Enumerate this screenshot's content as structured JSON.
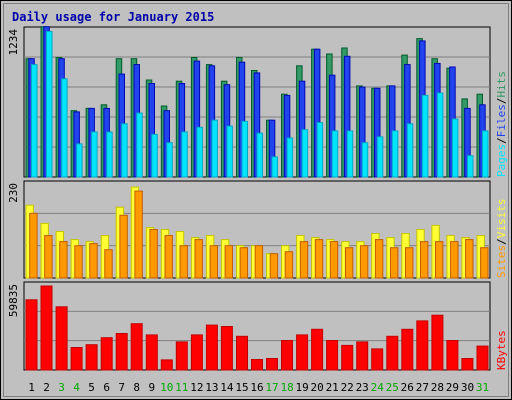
{
  "chart_data": {
    "type": "bar",
    "title": "Daily usage for January 2015",
    "categories": [
      "1",
      "2",
      "3",
      "4",
      "5",
      "6",
      "7",
      "8",
      "9",
      "10",
      "11",
      "12",
      "13",
      "14",
      "15",
      "16",
      "17",
      "18",
      "19",
      "20",
      "21",
      "22",
      "23",
      "24",
      "25",
      "26",
      "27",
      "28",
      "29",
      "30",
      "31"
    ],
    "weekend_days": [
      "3",
      "4",
      "10",
      "11",
      "17",
      "18",
      "24",
      "25",
      "31"
    ],
    "panels": [
      {
        "id": "hits",
        "y_max_label": "1234",
        "ylim": [
          0,
          1234
        ],
        "series": [
          {
            "name": "Hits",
            "color": "#339966",
            "values": [
              1000,
              1270,
              1010,
              560,
              580,
              610,
              1000,
              1000,
              820,
              600,
              810,
              1010,
              950,
              810,
              1010,
              900,
              480,
              700,
              940,
              1080,
              1040,
              1090,
              770,
              750,
              770,
              1030,
              1170,
              1000,
              920,
              660,
              700
            ]
          },
          {
            "name": "Files",
            "color": "#2244ee",
            "values": [
              1000,
              1270,
              1000,
              550,
              580,
              580,
              870,
              950,
              790,
              560,
              790,
              980,
              940,
              780,
              970,
              880,
              480,
              690,
              810,
              1080,
              860,
              1020,
              760,
              750,
              770,
              950,
              1150,
              960,
              930,
              580,
              610
            ]
          },
          {
            "name": "Pages",
            "color": "#00e5ff",
            "values": [
              950,
              1230,
              830,
              280,
              380,
              380,
              450,
              540,
              360,
              290,
              380,
              420,
              480,
              430,
              470,
              370,
              170,
              330,
              400,
              460,
              390,
              390,
              290,
              340,
              390,
              450,
              690,
              710,
              490,
              180,
              390
            ]
          }
        ]
      },
      {
        "id": "visits",
        "y_max_label": "230",
        "ylim": [
          0,
          230
        ],
        "series": [
          {
            "name": "Visits",
            "color": "#ffff33",
            "values": [
              180,
              135,
              115,
              95,
              90,
              105,
              175,
              225,
              125,
              120,
              115,
              100,
              105,
              95,
              80,
              80,
              60,
              80,
              105,
              100,
              95,
              90,
              90,
              110,
              100,
              110,
              120,
              130,
              105,
              100,
              105
            ]
          },
          {
            "name": "Sites",
            "color": "#ff9900",
            "values": [
              160,
              105,
              90,
              80,
              85,
              70,
              155,
              215,
              120,
              105,
              80,
              95,
              80,
              80,
              75,
              80,
              60,
              65,
              90,
              95,
              90,
              75,
              80,
              95,
              75,
              75,
              90,
              90,
              90,
              95,
              75
            ]
          }
        ]
      },
      {
        "id": "kbytes",
        "y_max_label": "59835",
        "ylim": [
          0,
          59835
        ],
        "series": [
          {
            "name": "KBytes",
            "color": "#ff0000",
            "values": [
              50000,
              59835,
              45000,
              16000,
              18000,
              23000,
              26000,
              33000,
              25000,
              7200,
              20000,
              25000,
              32000,
              31000,
              24000,
              7500,
              8200,
              21000,
              25000,
              29000,
              21000,
              17500,
              20000,
              15000,
              24000,
              29000,
              35000,
              39000,
              21000,
              8200,
              17000
            ]
          }
        ]
      }
    ],
    "legend_right": [
      {
        "panel": "hits",
        "items": [
          {
            "label": "Pages",
            "color": "#00e5ff"
          },
          {
            "label": "/",
            "color": "#000000"
          },
          {
            "label": "Files",
            "color": "#2244ee"
          },
          {
            "label": "/",
            "color": "#000000"
          },
          {
            "label": "Hits",
            "color": "#339966"
          }
        ]
      },
      {
        "panel": "visits",
        "items": [
          {
            "label": "Sites",
            "color": "#ff9900"
          },
          {
            "label": "/",
            "color": "#000000"
          },
          {
            "label": "Visits",
            "color": "#ffff33"
          }
        ]
      },
      {
        "panel": "kbytes",
        "items": [
          {
            "label": "KBytes",
            "color": "#ff0000"
          }
        ]
      }
    ],
    "colors": {
      "title": "#0000aa",
      "plot_bg": "#c0c0c0",
      "frame_bg": "#c0c0c0",
      "grid": "#808080",
      "weekday_label": "#000000",
      "weekend_label": "#00aa00"
    },
    "grid": true,
    "legend_placement": "right, vertical"
  }
}
